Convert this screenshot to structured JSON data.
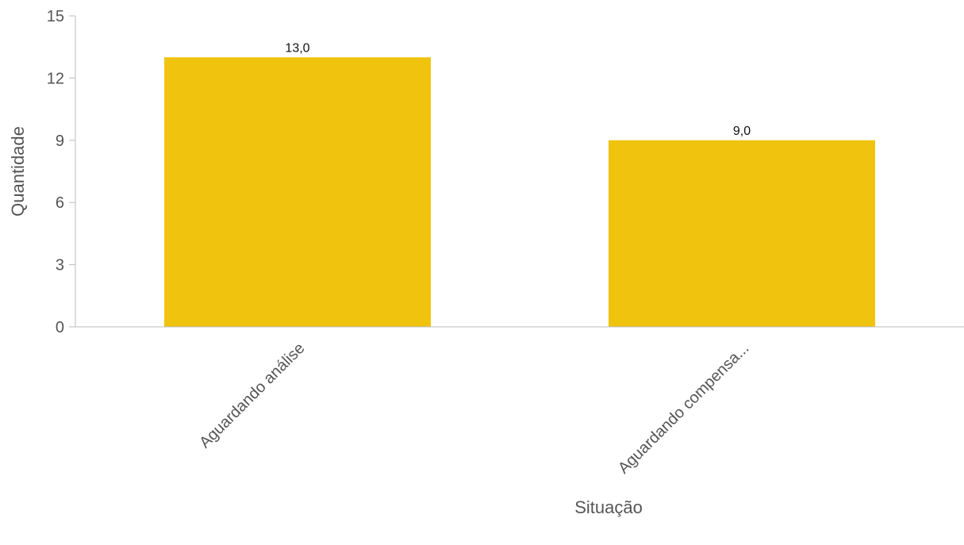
{
  "chart_data": {
    "type": "bar",
    "categories": [
      "Aguardando análise",
      "Aguardando compensa..."
    ],
    "values": [
      13,
      9
    ],
    "data_labels": [
      "13,0",
      "9,0"
    ],
    "xlabel": "Situação",
    "ylabel": "Quantidade",
    "ylim": [
      0,
      15
    ],
    "yticks": [
      "0",
      "3",
      "6",
      "9",
      "12",
      "15"
    ],
    "ytick_values": [
      0,
      3,
      6,
      9,
      12,
      15
    ],
    "grid": false,
    "bar_color": "#F0C30F"
  }
}
